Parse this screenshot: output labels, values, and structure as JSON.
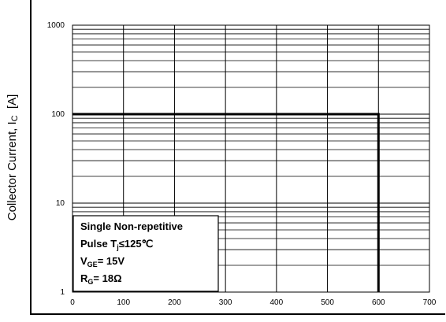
{
  "chart_data": {
    "type": "line",
    "title": "",
    "xlabel": "",
    "ylabel": "Collector Current, I",
    "ylabel_subscript": "C",
    "ylabel_unit": "[A]",
    "xlim": [
      0,
      700
    ],
    "ylim": [
      1,
      1000
    ],
    "y_scale": "log",
    "grid": true,
    "x_ticks": [
      0,
      100,
      200,
      300,
      400,
      500,
      600,
      700
    ],
    "x_tick_labels": [
      "0",
      "100",
      "200",
      "300",
      "400",
      "500",
      "600",
      "700"
    ],
    "y_ticks": [
      1,
      10,
      100,
      1000
    ],
    "y_tick_labels": [
      "1",
      "10",
      "100",
      "1000"
    ],
    "series": [
      {
        "x": [
          0,
          600,
          600
        ],
        "y": [
          100,
          100,
          1
        ]
      }
    ],
    "annotation": {
      "line1": "Single Non-repetitive",
      "line2_main": "Pulse T",
      "line2_sub": "j",
      "line2_rest": "≤125℃",
      "line3_main": "V",
      "line3_sub": "GE",
      "line3_rest": "= 15V",
      "line4_main": "R",
      "line4_sub": "G",
      "line4_rest": "= 18Ω"
    }
  }
}
